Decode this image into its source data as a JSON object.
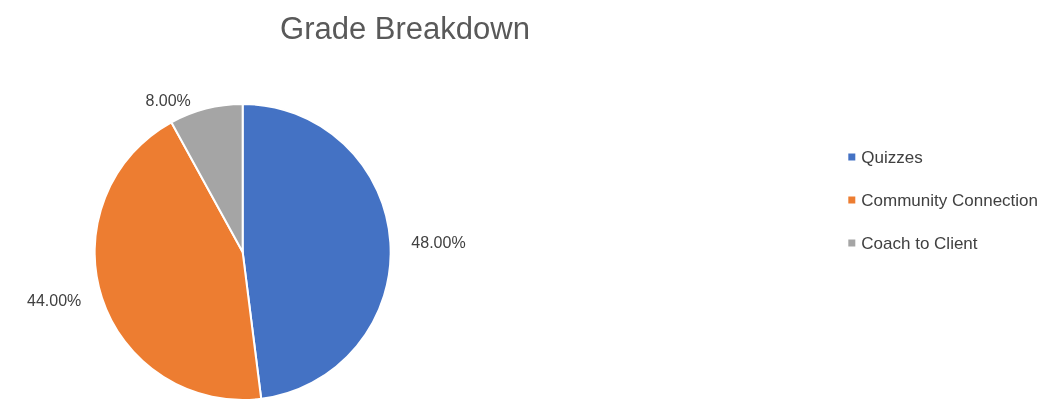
{
  "chart_data": {
    "type": "pie",
    "title": "Grade Breakdown",
    "categories": [
      "Quizzes",
      "Community Connection",
      "Coach to Client"
    ],
    "values": [
      48,
      44,
      8
    ],
    "colors": [
      "#4472c4",
      "#ed7d31",
      "#a5a5a5"
    ],
    "value_labels": [
      "48.00%",
      "44.00%",
      "8.00%"
    ],
    "legend": "right"
  }
}
